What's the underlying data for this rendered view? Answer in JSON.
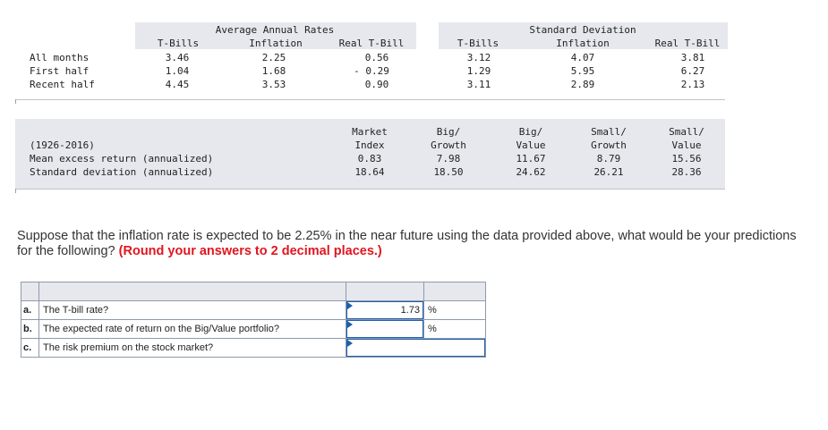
{
  "rates_table": {
    "group_headers": [
      "Average Annual Rates",
      "Standard Deviation"
    ],
    "columns": [
      "T-Bills",
      "Inflation",
      "Real T-Bill",
      "T-Bills",
      "Inflation",
      "Real T-Bill"
    ],
    "rows": [
      {
        "label": "All months",
        "values": [
          "3.46",
          "2.25",
          "0.56",
          "3.12",
          "4.07",
          "3.81"
        ]
      },
      {
        "label": "First half",
        "values": [
          "1.04",
          "1.68",
          "- 0.29",
          "1.29",
          "5.95",
          "6.27"
        ]
      },
      {
        "label": "Recent half",
        "values": [
          "4.45",
          "3.53",
          "0.90",
          "3.11",
          "2.89",
          "2.13"
        ]
      }
    ]
  },
  "returns_table": {
    "period": "(1926-2016)",
    "columns": [
      {
        "line1": "Market",
        "line2": "Index"
      },
      {
        "line1": "Big/",
        "line2": "Growth"
      },
      {
        "line1": "Big/",
        "line2": "Value"
      },
      {
        "line1": "Small/",
        "line2": "Growth"
      },
      {
        "line1": "Small/",
        "line2": "Value"
      }
    ],
    "rows": [
      {
        "label": "Mean excess return (annualized)",
        "values": [
          "0.83",
          "7.98",
          "11.67",
          "8.79",
          "15.56"
        ]
      },
      {
        "label": "Standard deviation (annualized)",
        "values": [
          "18.64",
          "18.50",
          "24.62",
          "26.21",
          "28.36"
        ]
      }
    ]
  },
  "question": {
    "text": "Suppose that the inflation rate is expected to be 2.25% in the near future using the data provided above, what would be your predictions for the following?",
    "instruction": "(Round your answers to 2 decimal places.)"
  },
  "answers": {
    "rows": [
      {
        "letter": "a.",
        "text": "The T-bill rate?",
        "value": "1.73",
        "unit": "%"
      },
      {
        "letter": "b.",
        "text": "The expected rate of return on the Big/Value portfolio?",
        "value": "",
        "unit": "%"
      },
      {
        "letter": "c.",
        "text": "The risk premium on the stock market?",
        "value": "",
        "unit": ""
      }
    ]
  },
  "colors": {
    "accent": "#1f5fb0",
    "instruction": "#e0161f",
    "header_band": "#e6e8ee"
  }
}
